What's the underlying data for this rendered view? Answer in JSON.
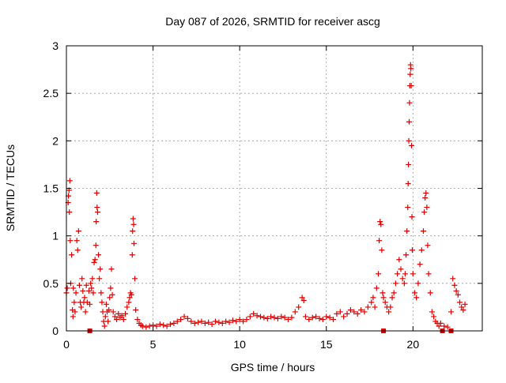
{
  "chart_data": {
    "type": "scatter",
    "title": "Day 087 of 2026, SRMTID for receiver ascg",
    "xlabel": "GPS time / hours",
    "ylabel": "SRMTID / TECUs",
    "xlim": [
      0,
      24
    ],
    "ylim": [
      0,
      3
    ],
    "xticks": [
      0,
      5,
      10,
      15,
      20
    ],
    "yticks": [
      0,
      0.5,
      1,
      1.5,
      2,
      2.5,
      3
    ],
    "ytick_labels": [
      "0",
      "0.5",
      "1",
      "1.5",
      "2",
      "2.5",
      "3"
    ],
    "grid": true,
    "marker": "plus",
    "color": "#e00000",
    "series": [
      {
        "name": "SRMTID",
        "points": [
          [
            0.0,
            0.4
          ],
          [
            0.05,
            0.45
          ],
          [
            0.1,
            1.35
          ],
          [
            0.12,
            1.42
          ],
          [
            0.15,
            1.48
          ],
          [
            0.17,
            1.25
          ],
          [
            0.2,
            1.58
          ],
          [
            0.22,
            0.95
          ],
          [
            0.25,
            0.5
          ],
          [
            0.3,
            0.8
          ],
          [
            0.35,
            0.22
          ],
          [
            0.38,
            0.15
          ],
          [
            0.4,
            0.45
          ],
          [
            0.45,
            0.3
          ],
          [
            0.5,
            0.2
          ],
          [
            0.55,
            0.4
          ],
          [
            0.6,
            0.95
          ],
          [
            0.65,
            0.85
          ],
          [
            0.7,
            1.05
          ],
          [
            0.75,
            0.48
          ],
          [
            0.8,
            0.3
          ],
          [
            0.85,
            0.25
          ],
          [
            0.9,
            0.55
          ],
          [
            0.95,
            0.42
          ],
          [
            1.0,
            0.3
          ],
          [
            1.05,
            0.35
          ],
          [
            1.1,
            0.2
          ],
          [
            1.15,
            0.48
          ],
          [
            1.2,
            0.3
          ],
          [
            1.3,
            0.42
          ],
          [
            1.35,
            0.28
          ],
          [
            1.4,
            0.5
          ],
          [
            1.45,
            0.45
          ],
          [
            1.5,
            0.55
          ],
          [
            1.55,
            0.4
          ],
          [
            1.6,
            0.72
          ],
          [
            1.65,
            0.75
          ],
          [
            1.7,
            0.9
          ],
          [
            1.72,
            1.15
          ],
          [
            1.75,
            1.45
          ],
          [
            1.77,
            1.3
          ],
          [
            1.8,
            1.25
          ],
          [
            1.85,
            0.8
          ],
          [
            1.9,
            0.55
          ],
          [
            1.95,
            0.65
          ],
          [
            2.0,
            0.4
          ],
          [
            2.05,
            0.3
          ],
          [
            2.1,
            0.2
          ],
          [
            2.15,
            0.1
          ],
          [
            2.2,
            0.05
          ],
          [
            2.25,
            0.15
          ],
          [
            2.3,
            0.28
          ],
          [
            2.35,
            0.2
          ],
          [
            2.4,
            0.1
          ],
          [
            2.45,
            0.22
          ],
          [
            2.5,
            0.35
          ],
          [
            2.55,
            0.45
          ],
          [
            2.6,
            0.65
          ],
          [
            2.65,
            0.38
          ],
          [
            2.7,
            0.2
          ],
          [
            2.8,
            0.15
          ],
          [
            2.9,
            0.12
          ],
          [
            3.0,
            0.18
          ],
          [
            3.1,
            0.14
          ],
          [
            3.2,
            0.16
          ],
          [
            3.3,
            0.12
          ],
          [
            3.4,
            0.18
          ],
          [
            3.5,
            0.25
          ],
          [
            3.6,
            0.3
          ],
          [
            3.65,
            0.35
          ],
          [
            3.7,
            0.4
          ],
          [
            3.75,
            0.38
          ],
          [
            3.8,
            0.8
          ],
          [
            3.82,
            1.05
          ],
          [
            3.85,
            1.18
          ],
          [
            3.88,
            1.12
          ],
          [
            3.9,
            0.92
          ],
          [
            3.95,
            0.55
          ],
          [
            4.0,
            0.22
          ],
          [
            4.1,
            0.12
          ],
          [
            4.2,
            0.08
          ],
          [
            4.3,
            0.06
          ],
          [
            4.4,
            0.05
          ],
          [
            4.6,
            0.04
          ],
          [
            4.8,
            0.05
          ],
          [
            5.0,
            0.06
          ],
          [
            5.2,
            0.05
          ],
          [
            5.4,
            0.07
          ],
          [
            5.6,
            0.06
          ],
          [
            5.8,
            0.05
          ],
          [
            6.0,
            0.07
          ],
          [
            6.2,
            0.08
          ],
          [
            6.4,
            0.1
          ],
          [
            6.6,
            0.12
          ],
          [
            6.8,
            0.15
          ],
          [
            7.0,
            0.13
          ],
          [
            7.2,
            0.1
          ],
          [
            7.4,
            0.08
          ],
          [
            7.6,
            0.09
          ],
          [
            7.8,
            0.1
          ],
          [
            8.0,
            0.08
          ],
          [
            8.2,
            0.09
          ],
          [
            8.4,
            0.07
          ],
          [
            8.6,
            0.1
          ],
          [
            8.8,
            0.09
          ],
          [
            9.0,
            0.08
          ],
          [
            9.2,
            0.1
          ],
          [
            9.4,
            0.09
          ],
          [
            9.6,
            0.11
          ],
          [
            9.8,
            0.1
          ],
          [
            10.0,
            0.12
          ],
          [
            10.2,
            0.1
          ],
          [
            10.4,
            0.12
          ],
          [
            10.6,
            0.15
          ],
          [
            10.8,
            0.18
          ],
          [
            11.0,
            0.16
          ],
          [
            11.2,
            0.15
          ],
          [
            11.4,
            0.14
          ],
          [
            11.6,
            0.13
          ],
          [
            11.8,
            0.15
          ],
          [
            12.0,
            0.14
          ],
          [
            12.2,
            0.13
          ],
          [
            12.4,
            0.15
          ],
          [
            12.6,
            0.14
          ],
          [
            12.8,
            0.12
          ],
          [
            13.0,
            0.14
          ],
          [
            13.2,
            0.2
          ],
          [
            13.4,
            0.25
          ],
          [
            13.6,
            0.35
          ],
          [
            13.7,
            0.32
          ],
          [
            13.8,
            0.15
          ],
          [
            14.0,
            0.12
          ],
          [
            14.2,
            0.14
          ],
          [
            14.4,
            0.15
          ],
          [
            14.6,
            0.13
          ],
          [
            14.8,
            0.12
          ],
          [
            15.0,
            0.15
          ],
          [
            15.2,
            0.14
          ],
          [
            15.4,
            0.12
          ],
          [
            15.6,
            0.18
          ],
          [
            15.8,
            0.2
          ],
          [
            16.0,
            0.15
          ],
          [
            16.2,
            0.18
          ],
          [
            16.4,
            0.22
          ],
          [
            16.6,
            0.2
          ],
          [
            16.8,
            0.18
          ],
          [
            17.0,
            0.22
          ],
          [
            17.2,
            0.2
          ],
          [
            17.4,
            0.25
          ],
          [
            17.6,
            0.3
          ],
          [
            17.7,
            0.35
          ],
          [
            17.8,
            0.25
          ],
          [
            17.9,
            0.45
          ],
          [
            18.0,
            0.6
          ],
          [
            18.05,
            0.95
          ],
          [
            18.1,
            1.15
          ],
          [
            18.15,
            1.12
          ],
          [
            18.2,
            0.85
          ],
          [
            18.25,
            0.4
          ],
          [
            18.3,
            0.35
          ],
          [
            18.4,
            0.3
          ],
          [
            18.5,
            0.25
          ],
          [
            18.6,
            0.2
          ],
          [
            18.7,
            0.25
          ],
          [
            18.8,
            0.35
          ],
          [
            18.9,
            0.4
          ],
          [
            19.0,
            0.5
          ],
          [
            19.1,
            0.6
          ],
          [
            19.2,
            0.75
          ],
          [
            19.3,
            0.65
          ],
          [
            19.4,
            0.55
          ],
          [
            19.5,
            0.5
          ],
          [
            19.55,
            0.6
          ],
          [
            19.6,
            0.8
          ],
          [
            19.65,
            1.05
          ],
          [
            19.7,
            1.3
          ],
          [
            19.72,
            1.55
          ],
          [
            19.74,
            1.75
          ],
          [
            19.76,
            2.0
          ],
          [
            19.78,
            2.2
          ],
          [
            19.8,
            2.4
          ],
          [
            19.82,
            2.58
          ],
          [
            19.84,
            2.7
          ],
          [
            19.86,
            2.8
          ],
          [
            19.88,
            2.76
          ],
          [
            19.9,
            2.58
          ],
          [
            19.92,
            1.95
          ],
          [
            19.94,
            1.2
          ],
          [
            19.96,
            0.85
          ],
          [
            20.0,
            0.6
          ],
          [
            20.1,
            0.4
          ],
          [
            20.2,
            0.35
          ],
          [
            20.3,
            0.5
          ],
          [
            20.4,
            0.7
          ],
          [
            20.5,
            0.85
          ],
          [
            20.6,
            1.05
          ],
          [
            20.65,
            1.25
          ],
          [
            20.7,
            1.4
          ],
          [
            20.75,
            1.45
          ],
          [
            20.8,
            1.3
          ],
          [
            20.85,
            0.9
          ],
          [
            20.9,
            0.6
          ],
          [
            21.0,
            0.4
          ],
          [
            21.1,
            0.2
          ],
          [
            21.2,
            0.15
          ],
          [
            21.3,
            0.1
          ],
          [
            21.4,
            0.08
          ],
          [
            21.5,
            0.05
          ],
          [
            21.6,
            0.08
          ],
          [
            21.8,
            0.05
          ],
          [
            22.0,
            0.04
          ],
          [
            22.2,
            0.2
          ],
          [
            22.3,
            0.55
          ],
          [
            22.4,
            0.48
          ],
          [
            22.5,
            0.42
          ],
          [
            22.6,
            0.38
          ],
          [
            22.7,
            0.3
          ],
          [
            22.8,
            0.25
          ],
          [
            22.9,
            0.22
          ],
          [
            23.0,
            0.28
          ]
        ],
        "square_points": [
          [
            1.35,
            0.0
          ],
          [
            18.3,
            0.0
          ],
          [
            21.7,
            0.0
          ],
          [
            22.2,
            0.0
          ]
        ]
      }
    ]
  }
}
